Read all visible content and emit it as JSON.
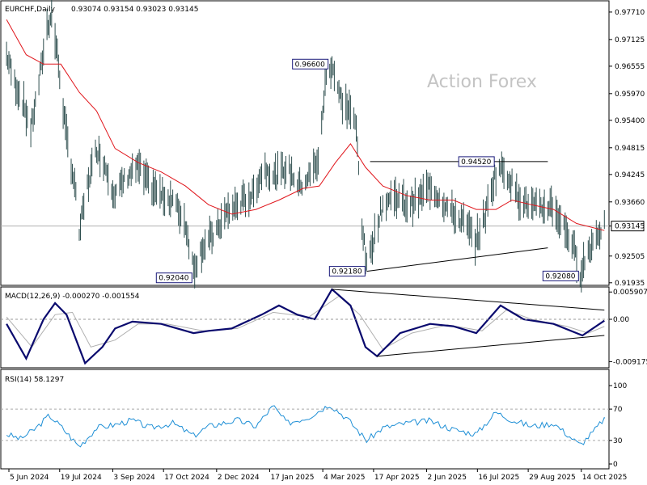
{
  "watermark": "Action Forex",
  "chart_data": [
    {
      "type": "candlestick",
      "title": "EURCHF,Daily",
      "ohlc_header": "0.93074 0.93154 0.93023 0.93145",
      "y_ticks": [
        "0.97710",
        "0.97125",
        "0.96555",
        "0.95970",
        "0.95400",
        "0.94815",
        "0.94245",
        "0.93660",
        "0.93145",
        "0.92505",
        "0.91935"
      ],
      "ylim": [
        0.9188,
        0.9795
      ],
      "current_price": 0.93145,
      "current_price_label": "0.93145",
      "x_tick_labels": [
        "5 Jun 2024",
        "19 Jul 2024",
        "3 Sep 2024",
        "17 Oct 2024",
        "2 Dec 2024",
        "17 Jan 2025",
        "4 Mar 2025",
        "17 Apr 2025",
        "2 Jun 2025",
        "16 Jul 2025",
        "29 Aug 2025",
        "14 Oct 2025"
      ],
      "x_tick_dates": [
        "2024-06-05",
        "2024-07-19",
        "2024-09-03",
        "2024-10-17",
        "2024-12-02",
        "2025-01-17",
        "2025-03-04",
        "2025-04-17",
        "2025-06-02",
        "2025-07-16",
        "2025-08-29",
        "2025-10-14"
      ],
      "close_path": [
        {
          "date": "2024-06-03",
          "value": 0.968
        },
        {
          "date": "2024-06-10",
          "value": 0.962
        },
        {
          "date": "2024-06-17",
          "value": 0.958
        },
        {
          "date": "2024-06-24",
          "value": 0.952
        },
        {
          "date": "2024-07-01",
          "value": 0.962
        },
        {
          "date": "2024-07-08",
          "value": 0.974
        },
        {
          "date": "2024-07-12",
          "value": 0.9765
        },
        {
          "date": "2024-07-17",
          "value": 0.968
        },
        {
          "date": "2024-07-24",
          "value": 0.952
        },
        {
          "date": "2024-08-01",
          "value": 0.94
        },
        {
          "date": "2024-08-05",
          "value": 0.93
        },
        {
          "date": "2024-08-12",
          "value": 0.94
        },
        {
          "date": "2024-08-20",
          "value": 0.948
        },
        {
          "date": "2024-08-28",
          "value": 0.944
        },
        {
          "date": "2024-09-05",
          "value": 0.938
        },
        {
          "date": "2024-09-15",
          "value": 0.942
        },
        {
          "date": "2024-09-25",
          "value": 0.944
        },
        {
          "date": "2024-10-05",
          "value": 0.94
        },
        {
          "date": "2024-10-15",
          "value": 0.938
        },
        {
          "date": "2024-10-25",
          "value": 0.937
        },
        {
          "date": "2024-11-05",
          "value": 0.932
        },
        {
          "date": "2024-11-12",
          "value": 0.9225
        },
        {
          "date": "2024-11-20",
          "value": 0.927
        },
        {
          "date": "2024-12-01",
          "value": 0.93
        },
        {
          "date": "2024-12-10",
          "value": 0.934
        },
        {
          "date": "2024-12-20",
          "value": 0.936
        },
        {
          "date": "2025-01-02",
          "value": 0.938
        },
        {
          "date": "2025-01-12",
          "value": 0.944
        },
        {
          "date": "2025-01-22",
          "value": 0.942
        },
        {
          "date": "2025-02-01",
          "value": 0.944
        },
        {
          "date": "2025-02-12",
          "value": 0.94
        },
        {
          "date": "2025-02-20",
          "value": 0.942
        },
        {
          "date": "2025-03-01",
          "value": 0.946
        },
        {
          "date": "2025-03-06",
          "value": 0.962
        },
        {
          "date": "2025-03-12",
          "value": 0.966
        },
        {
          "date": "2025-03-20",
          "value": 0.958
        },
        {
          "date": "2025-03-28",
          "value": 0.956
        },
        {
          "date": "2025-04-02",
          "value": 0.952
        },
        {
          "date": "2025-04-07",
          "value": 0.932
        },
        {
          "date": "2025-04-11",
          "value": 0.9225
        },
        {
          "date": "2025-04-16",
          "value": 0.928
        },
        {
          "date": "2025-04-25",
          "value": 0.936
        },
        {
          "date": "2025-05-05",
          "value": 0.938
        },
        {
          "date": "2025-05-15",
          "value": 0.936
        },
        {
          "date": "2025-05-25",
          "value": 0.937
        },
        {
          "date": "2025-06-05",
          "value": 0.94
        },
        {
          "date": "2025-06-15",
          "value": 0.937
        },
        {
          "date": "2025-06-25",
          "value": 0.934
        },
        {
          "date": "2025-07-05",
          "value": 0.932
        },
        {
          "date": "2025-07-15",
          "value": 0.928
        },
        {
          "date": "2025-07-25",
          "value": 0.936
        },
        {
          "date": "2025-07-31",
          "value": 0.942
        },
        {
          "date": "2025-08-05",
          "value": 0.944
        },
        {
          "date": "2025-08-12",
          "value": 0.942
        },
        {
          "date": "2025-08-20",
          "value": 0.938
        },
        {
          "date": "2025-08-28",
          "value": 0.936
        },
        {
          "date": "2025-09-08",
          "value": 0.935
        },
        {
          "date": "2025-09-18",
          "value": 0.936
        },
        {
          "date": "2025-09-25",
          "value": 0.933
        },
        {
          "date": "2025-10-02",
          "value": 0.93
        },
        {
          "date": "2025-10-08",
          "value": 0.926
        },
        {
          "date": "2025-10-13",
          "value": 0.9215
        },
        {
          "date": "2025-10-20",
          "value": 0.926
        },
        {
          "date": "2025-10-28",
          "value": 0.93
        },
        {
          "date": "2025-11-03",
          "value": 0.93145
        }
      ],
      "moving_average": [
        {
          "date": "2024-06-03",
          "value": 0.9755
        },
        {
          "date": "2024-06-20",
          "value": 0.968
        },
        {
          "date": "2024-07-05",
          "value": 0.966
        },
        {
          "date": "2024-07-20",
          "value": 0.966
        },
        {
          "date": "2024-08-05",
          "value": 0.96
        },
        {
          "date": "2024-08-20",
          "value": 0.956
        },
        {
          "date": "2024-09-05",
          "value": 0.948
        },
        {
          "date": "2024-09-25",
          "value": 0.945
        },
        {
          "date": "2024-10-15",
          "value": 0.943
        },
        {
          "date": "2024-11-05",
          "value": 0.94
        },
        {
          "date": "2024-11-25",
          "value": 0.936
        },
        {
          "date": "2024-12-15",
          "value": 0.934
        },
        {
          "date": "2025-01-05",
          "value": 0.935
        },
        {
          "date": "2025-01-25",
          "value": 0.937
        },
        {
          "date": "2025-02-15",
          "value": 0.9395
        },
        {
          "date": "2025-03-01",
          "value": 0.94
        },
        {
          "date": "2025-03-15",
          "value": 0.945
        },
        {
          "date": "2025-03-28",
          "value": 0.949
        },
        {
          "date": "2025-04-10",
          "value": 0.944
        },
        {
          "date": "2025-04-25",
          "value": 0.94
        },
        {
          "date": "2025-05-15",
          "value": 0.938
        },
        {
          "date": "2025-06-05",
          "value": 0.937
        },
        {
          "date": "2025-06-25",
          "value": 0.937
        },
        {
          "date": "2025-07-15",
          "value": 0.935
        },
        {
          "date": "2025-08-01",
          "value": 0.935
        },
        {
          "date": "2025-08-15",
          "value": 0.937
        },
        {
          "date": "2025-09-01",
          "value": 0.936
        },
        {
          "date": "2025-09-20",
          "value": 0.935
        },
        {
          "date": "2025-10-10",
          "value": 0.932
        },
        {
          "date": "2025-11-03",
          "value": 0.9305
        }
      ],
      "annotations": [
        {
          "label": "0.96600",
          "date": "2025-03-10",
          "value": 0.966,
          "position": "left"
        },
        {
          "label": "0.94520",
          "date": "2025-08-01",
          "value": 0.9452,
          "position": "left"
        },
        {
          "label": "0.92040",
          "date": "2024-11-12",
          "value": 0.9204,
          "position": "left"
        },
        {
          "label": "0.92180",
          "date": "2025-04-11",
          "value": 0.9218,
          "position": "left"
        },
        {
          "label": "0.92080",
          "date": "2025-10-13",
          "value": 0.9208,
          "position": "left"
        }
      ],
      "trendlines": [
        {
          "from": {
            "date": "2025-04-14",
            "value": 0.9452
          },
          "to": {
            "date": "2025-09-15",
            "value": 0.9452
          }
        },
        {
          "from": {
            "date": "2025-04-11",
            "value": 0.9218
          },
          "to": {
            "date": "2025-09-15",
            "value": 0.9268
          }
        }
      ]
    },
    {
      "type": "line",
      "title": "MACD(12,26,9) -0.000270 -0.001554",
      "y_ticks": [
        "0.005907",
        "0.00",
        "-0.009175"
      ],
      "ylim": [
        -0.0105,
        0.007
      ],
      "macd": [
        {
          "date": "2024-06-03",
          "value": -0.001
        },
        {
          "date": "2024-06-20",
          "value": -0.0085
        },
        {
          "date": "2024-07-05",
          "value": 0.0
        },
        {
          "date": "2024-07-15",
          "value": 0.0035
        },
        {
          "date": "2024-07-25",
          "value": 0.001
        },
        {
          "date": "2024-08-10",
          "value": -0.0095
        },
        {
          "date": "2024-08-25",
          "value": -0.006
        },
        {
          "date": "2024-09-05",
          "value": -0.002
        },
        {
          "date": "2024-09-20",
          "value": -0.0005
        },
        {
          "date": "2024-10-15",
          "value": -0.001
        },
        {
          "date": "2024-11-12",
          "value": -0.003
        },
        {
          "date": "2024-11-25",
          "value": -0.0025
        },
        {
          "date": "2024-12-15",
          "value": -0.002
        },
        {
          "date": "2025-01-10",
          "value": 0.001
        },
        {
          "date": "2025-01-25",
          "value": 0.003
        },
        {
          "date": "2025-02-10",
          "value": 0.001
        },
        {
          "date": "2025-02-25",
          "value": 0.0
        },
        {
          "date": "2025-03-12",
          "value": 0.0065
        },
        {
          "date": "2025-03-28",
          "value": 0.003
        },
        {
          "date": "2025-04-10",
          "value": -0.006
        },
        {
          "date": "2025-04-20",
          "value": -0.008
        },
        {
          "date": "2025-05-10",
          "value": -0.003
        },
        {
          "date": "2025-06-05",
          "value": -0.001
        },
        {
          "date": "2025-06-25",
          "value": -0.0015
        },
        {
          "date": "2025-07-15",
          "value": -0.003
        },
        {
          "date": "2025-08-05",
          "value": 0.003
        },
        {
          "date": "2025-08-25",
          "value": 0.0
        },
        {
          "date": "2025-09-20",
          "value": -0.001
        },
        {
          "date": "2025-10-15",
          "value": -0.0035
        },
        {
          "date": "2025-11-03",
          "value": -0.0003
        }
      ],
      "signal": [
        {
          "date": "2024-06-03",
          "value": 0.0005
        },
        {
          "date": "2024-06-25",
          "value": -0.006
        },
        {
          "date": "2024-07-15",
          "value": 0.001
        },
        {
          "date": "2024-07-30",
          "value": 0.0015
        },
        {
          "date": "2024-08-15",
          "value": -0.006
        },
        {
          "date": "2024-09-05",
          "value": -0.0045
        },
        {
          "date": "2024-09-25",
          "value": -0.001
        },
        {
          "date": "2024-10-20",
          "value": -0.001
        },
        {
          "date": "2024-11-20",
          "value": -0.0025
        },
        {
          "date": "2024-12-20",
          "value": -0.002
        },
        {
          "date": "2025-01-20",
          "value": 0.0015
        },
        {
          "date": "2025-02-20",
          "value": 0.0005
        },
        {
          "date": "2025-03-18",
          "value": 0.005
        },
        {
          "date": "2025-04-05",
          "value": 0.001
        },
        {
          "date": "2025-04-25",
          "value": -0.0065
        },
        {
          "date": "2025-05-20",
          "value": -0.003
        },
        {
          "date": "2025-06-20",
          "value": -0.0012
        },
        {
          "date": "2025-07-20",
          "value": -0.0025
        },
        {
          "date": "2025-08-10",
          "value": 0.002
        },
        {
          "date": "2025-09-01",
          "value": 0.0
        },
        {
          "date": "2025-10-01",
          "value": -0.0015
        },
        {
          "date": "2025-10-20",
          "value": -0.003
        },
        {
          "date": "2025-11-03",
          "value": -0.00155
        }
      ],
      "trendlines": [
        {
          "from": {
            "date": "2025-03-12",
            "value": 0.0065
          },
          "to": {
            "date": "2025-11-03",
            "value": 0.002
          }
        },
        {
          "from": {
            "date": "2025-04-20",
            "value": -0.008
          },
          "to": {
            "date": "2025-11-03",
            "value": -0.0035
          }
        }
      ]
    },
    {
      "type": "line",
      "title": "RSI(14) 58.1297",
      "y_ticks": [
        "100",
        "70",
        "30",
        "0"
      ],
      "ylim": [
        0,
        100
      ],
      "levels": [
        70,
        30
      ],
      "rsi": [
        {
          "date": "2024-06-03",
          "value": 38
        },
        {
          "date": "2024-06-15",
          "value": 32
        },
        {
          "date": "2024-06-28",
          "value": 45
        },
        {
          "date": "2024-07-10",
          "value": 62
        },
        {
          "date": "2024-07-20",
          "value": 48
        },
        {
          "date": "2024-08-05",
          "value": 22
        },
        {
          "date": "2024-08-20",
          "value": 46
        },
        {
          "date": "2024-09-05",
          "value": 50
        },
        {
          "date": "2024-09-20",
          "value": 56
        },
        {
          "date": "2024-10-05",
          "value": 46
        },
        {
          "date": "2024-10-25",
          "value": 52
        },
        {
          "date": "2024-11-12",
          "value": 36
        },
        {
          "date": "2024-11-25",
          "value": 48
        },
        {
          "date": "2024-12-20",
          "value": 56
        },
        {
          "date": "2025-01-05",
          "value": 48
        },
        {
          "date": "2025-01-20",
          "value": 74
        },
        {
          "date": "2025-02-01",
          "value": 52
        },
        {
          "date": "2025-02-20",
          "value": 60
        },
        {
          "date": "2025-03-10",
          "value": 76
        },
        {
          "date": "2025-03-25",
          "value": 58
        },
        {
          "date": "2025-04-11",
          "value": 30
        },
        {
          "date": "2025-04-25",
          "value": 46
        },
        {
          "date": "2025-05-15",
          "value": 52
        },
        {
          "date": "2025-06-05",
          "value": 55
        },
        {
          "date": "2025-06-25",
          "value": 44
        },
        {
          "date": "2025-07-15",
          "value": 38
        },
        {
          "date": "2025-08-01",
          "value": 66
        },
        {
          "date": "2025-08-15",
          "value": 56
        },
        {
          "date": "2025-09-01",
          "value": 48
        },
        {
          "date": "2025-09-20",
          "value": 52
        },
        {
          "date": "2025-10-13",
          "value": 24
        },
        {
          "date": "2025-10-25",
          "value": 42
        },
        {
          "date": "2025-11-03",
          "value": 58.1297
        }
      ]
    }
  ]
}
